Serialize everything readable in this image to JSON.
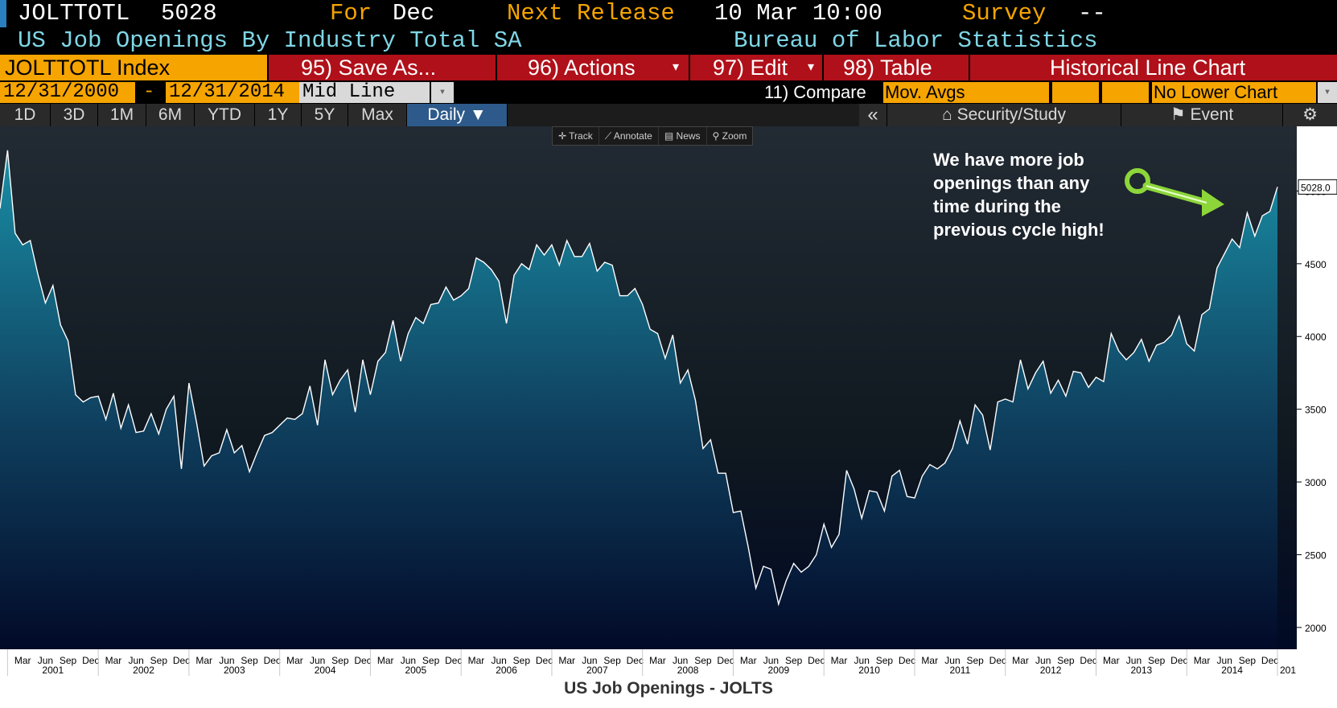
{
  "header": {
    "ticker": "JOLTTOTL",
    "last_value": "5028",
    "for_label": "For",
    "for_value": "Dec",
    "next_release_label": "Next Release",
    "next_release_value": "10 Mar 10:00",
    "survey_label": "Survey",
    "survey_value": "--",
    "description": "US Job Openings By Industry Total SA",
    "source": "Bureau of Labor Statistics"
  },
  "menu": {
    "security": "JOLTTOTL Index",
    "save_as": "95) Save As...",
    "actions": "96) Actions",
    "edit": "97) Edit",
    "table": "98) Table",
    "chart_title": "Historical Line Chart"
  },
  "range": {
    "start": "12/31/2000",
    "dash": "-",
    "end": "12/31/2014",
    "line_type": "Mid Line",
    "compare_label": "11) Compare",
    "compare_value": "Mov. Avgs",
    "lower_chart": "No Lower Chart"
  },
  "periods": [
    "1D",
    "3D",
    "1M",
    "6M",
    "YTD",
    "1Y",
    "5Y",
    "Max",
    "Daily ▼"
  ],
  "right_toolbar": {
    "collapse": "«",
    "security_study": "Security/Study",
    "event": "Event",
    "gear": "⚙"
  },
  "chart_tools": [
    "Track",
    "Annotate",
    "News",
    "Zoom"
  ],
  "annotation": "We have more job openings than any time during the previous cycle high!",
  "caption": "US Job Openings - JOLTS",
  "colors": {
    "accent_orange": "#f5a400",
    "cyan_text": "#7fd6e6",
    "menu_red": "#b01019",
    "line": "#ffffff",
    "arrow": "#8dd63a"
  },
  "chart_data": {
    "type": "area",
    "ylim": [
      1850,
      5500
    ],
    "y_ticks": [
      2000,
      2500,
      3000,
      3500,
      4000,
      4500,
      5000,
      5500
    ],
    "last_value_label": "5028.0",
    "month_labels": [
      "Mar",
      "Jun",
      "Sep",
      "Dec"
    ],
    "year_labels": [
      "2001",
      "2002",
      "2003",
      "2004",
      "2005",
      "2006",
      "2007",
      "2008",
      "2009",
      "2010",
      "2011",
      "2012",
      "2013",
      "2014"
    ],
    "x_axis_end_partial": "201",
    "series": [
      {
        "start": "2000-12",
        "values": [
          4880,
          5280,
          4710,
          4630,
          4660,
          4430,
          4230,
          4350,
          4080,
          3970,
          3600,
          3550,
          3580,
          3590,
          3430,
          3610,
          3370,
          3530,
          3340,
          3350,
          3470,
          3330,
          3500,
          3590,
          3090,
          3680,
          3410,
          3110,
          3180,
          3200,
          3360,
          3200,
          3250,
          3070,
          3200,
          3320,
          3340,
          3390,
          3440,
          3430,
          3470,
          3660,
          3390,
          3840,
          3600,
          3700,
          3770,
          3480,
          3840,
          3600,
          3830,
          3890,
          4110,
          3830,
          4020,
          4130,
          4090,
          4220,
          4230,
          4340,
          4250,
          4280,
          4330,
          4540,
          4510,
          4460,
          4380,
          4090,
          4420,
          4500,
          4460,
          4630,
          4560,
          4630,
          4490,
          4660,
          4550,
          4550,
          4640,
          4450,
          4510,
          4490,
          4280,
          4280,
          4330,
          4220,
          4050,
          4020,
          3850,
          4010,
          3680,
          3770,
          3560,
          3230,
          3290,
          3060,
          3060,
          2790,
          2800,
          2550,
          2270,
          2420,
          2400,
          2160,
          2320,
          2440,
          2380,
          2420,
          2500,
          2710,
          2550,
          2640,
          3080,
          2950,
          2750,
          2940,
          2930,
          2800,
          3040,
          3080,
          2900,
          2890,
          3040,
          3120,
          3090,
          3130,
          3230,
          3420,
          3260,
          3530,
          3460,
          3220,
          3550,
          3570,
          3550,
          3840,
          3640,
          3750,
          3830,
          3610,
          3700,
          3590,
          3760,
          3750,
          3650,
          3720,
          3690,
          4020,
          3900,
          3840,
          3890,
          3980,
          3830,
          3940,
          3960,
          4010,
          4140,
          3950,
          3900,
          4150,
          4190,
          4470,
          4570,
          4670,
          4610,
          4850,
          4690,
          4830,
          4860,
          5028
        ]
      }
    ]
  }
}
